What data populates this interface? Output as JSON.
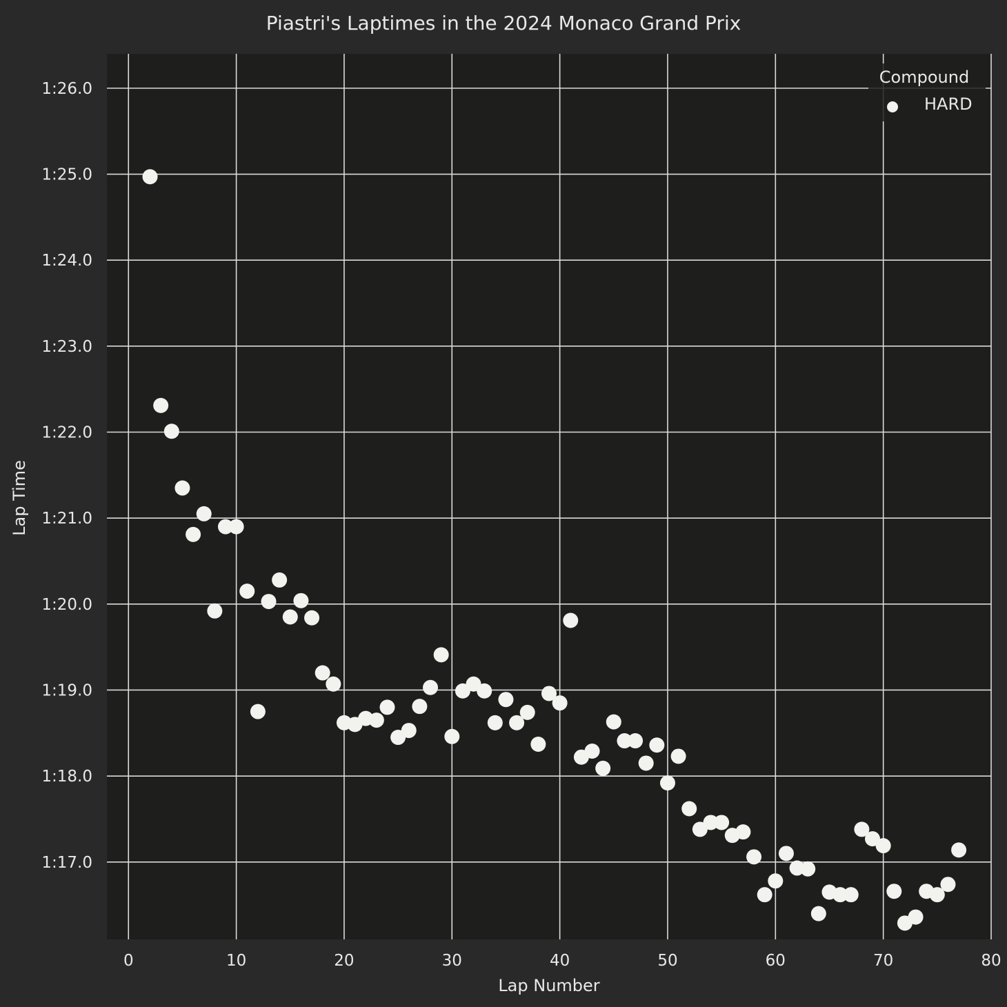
{
  "chart_data": {
    "type": "scatter",
    "title": "Piastri's Laptimes in the 2024 Monaco Grand Prix",
    "xlabel": "Lap Number",
    "ylabel": "Lap Time",
    "xlim": [
      -2,
      80
    ],
    "ylim": [
      "1:16.1",
      "1:26.4"
    ],
    "x_ticks": [
      0,
      10,
      20,
      30,
      40,
      50,
      60,
      70,
      80
    ],
    "y_ticks": [
      "1:17.0",
      "1:18.0",
      "1:19.0",
      "1:20.0",
      "1:21.0",
      "1:22.0",
      "1:23.0",
      "1:24.0",
      "1:25.0",
      "1:26.0"
    ],
    "grid": true,
    "legend": {
      "title": "Compound",
      "placement": "top-right",
      "entries": [
        "HARD"
      ]
    },
    "colors": {
      "background": "#292929",
      "plot_area": "#1e1e1d",
      "grid": "#dcdcdc",
      "marker": "#f2f2ee"
    },
    "series": [
      {
        "name": "HARD",
        "x": [
          2,
          3,
          4,
          5,
          6,
          7,
          8,
          9,
          10,
          11,
          12,
          13,
          14,
          15,
          16,
          17,
          18,
          19,
          20,
          21,
          22,
          23,
          24,
          25,
          26,
          27,
          28,
          29,
          30,
          31,
          32,
          33,
          34,
          35,
          36,
          37,
          38,
          39,
          40,
          41,
          42,
          43,
          44,
          45,
          46,
          47,
          48,
          49,
          50,
          51,
          52,
          53,
          54,
          55,
          56,
          57,
          58,
          59,
          60,
          61,
          62,
          63,
          64,
          65,
          66,
          67,
          68,
          69,
          70,
          71,
          72,
          73,
          74,
          75,
          76,
          77
        ],
        "y": [
          "1:24.97",
          "1:22.31",
          "1:22.01",
          "1:21.35",
          "1:20.81",
          "1:21.05",
          "1:19.92",
          "1:20.90",
          "1:20.90",
          "1:20.15",
          "1:18.75",
          "1:20.03",
          "1:20.28",
          "1:19.85",
          "1:20.04",
          "1:19.84",
          "1:19.20",
          "1:19.07",
          "1:18.62",
          "1:18.60",
          "1:18.67",
          "1:18.65",
          "1:18.80",
          "1:18.45",
          "1:18.53",
          "1:18.81",
          "1:19.03",
          "1:19.41",
          "1:18.46",
          "1:18.99",
          "1:19.07",
          "1:18.99",
          "1:18.62",
          "1:18.89",
          "1:18.62",
          "1:18.74",
          "1:18.37",
          "1:18.96",
          "1:18.85",
          "1:19.81",
          "1:18.22",
          "1:18.29",
          "1:18.09",
          "1:18.63",
          "1:18.41",
          "1:18.41",
          "1:18.15",
          "1:18.36",
          "1:17.92",
          "1:18.23",
          "1:17.62",
          "1:17.38",
          "1:17.46",
          "1:17.46",
          "1:17.31",
          "1:17.35",
          "1:17.06",
          "1:16.62",
          "1:16.78",
          "1:17.10",
          "1:16.93",
          "1:16.92",
          "1:16.40",
          "1:16.65",
          "1:16.62",
          "1:16.62",
          "1:17.38",
          "1:17.27",
          "1:17.19",
          "1:16.66",
          "1:16.29",
          "1:16.36",
          "1:16.66",
          "1:16.62",
          "1:16.74",
          "1:17.14"
        ]
      }
    ]
  }
}
